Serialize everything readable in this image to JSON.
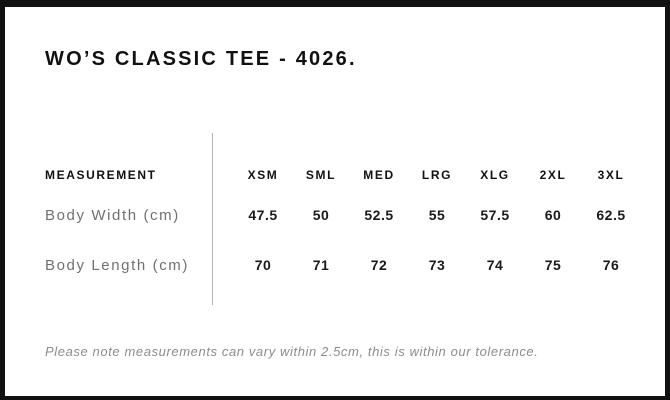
{
  "title": "WO’S CLASSIC TEE - 4026.",
  "table": {
    "measurement_header": "MEASUREMENT",
    "sizes": [
      "XSM",
      "SML",
      "MED",
      "LRG",
      "XLG",
      "2XL",
      "3XL"
    ],
    "rows": [
      {
        "label": "Body Width (cm)",
        "values": [
          "47.5",
          "50",
          "52.5",
          "55",
          "57.5",
          "60",
          "62.5"
        ]
      },
      {
        "label": "Body Length (cm)",
        "values": [
          "70",
          "71",
          "72",
          "73",
          "74",
          "75",
          "76"
        ]
      }
    ]
  },
  "note": "Please note measurements can vary within 2.5cm, this is within our tolerance.",
  "colors": {
    "background": "#ffffff",
    "frame_border": "#111111",
    "title_text": "#111111",
    "size_header_text": "#111111",
    "value_text": "#1a1a1a",
    "row_label_text": "#707070",
    "note_text": "#8c8c8c",
    "divider": "#b3b3b3"
  }
}
